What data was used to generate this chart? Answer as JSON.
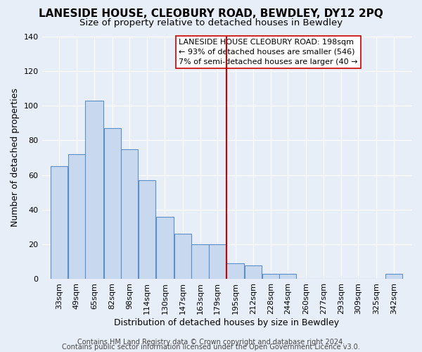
{
  "title": "LANESIDE HOUSE, CLEOBURY ROAD, BEWDLEY, DY12 2PQ",
  "subtitle": "Size of property relative to detached houses in Bewdley",
  "xlabel": "Distribution of detached houses by size in Bewdley",
  "ylabel": "Number of detached properties",
  "footer_line1": "Contains HM Land Registry data © Crown copyright and database right 2024.",
  "footer_line2": "Contains public sector information licensed under the Open Government Licence v3.0.",
  "legend_line1": "LANESIDE HOUSE CLEOBURY ROAD: 198sqm",
  "legend_line2": "← 93% of detached houses are smaller (546)",
  "legend_line3": "7% of semi-detached houses are larger (40 →",
  "bar_edges": [
    33,
    49,
    65,
    82,
    98,
    114,
    130,
    147,
    163,
    179,
    195,
    212,
    228,
    244,
    260,
    277,
    293,
    309,
    325,
    342,
    358
  ],
  "bar_values": [
    65,
    72,
    103,
    87,
    75,
    57,
    36,
    26,
    20,
    20,
    9,
    8,
    3,
    3,
    0,
    0,
    0,
    0,
    0,
    3
  ],
  "bar_color": "#c8d9ef",
  "bar_edge_color": "#5b8fc9",
  "vline_x": 195,
  "vline_color": "#cc0000",
  "background_color": "#e8eef7",
  "plot_background": "#e8eef7",
  "ylim": [
    0,
    140
  ],
  "yticks": [
    0,
    20,
    40,
    60,
    80,
    100,
    120,
    140
  ],
  "grid_color": "#ffffff",
  "title_fontsize": 11,
  "subtitle_fontsize": 9.5,
  "xlabel_fontsize": 9,
  "ylabel_fontsize": 9,
  "tick_fontsize": 8,
  "footer_fontsize": 7,
  "legend_fontsize": 8
}
